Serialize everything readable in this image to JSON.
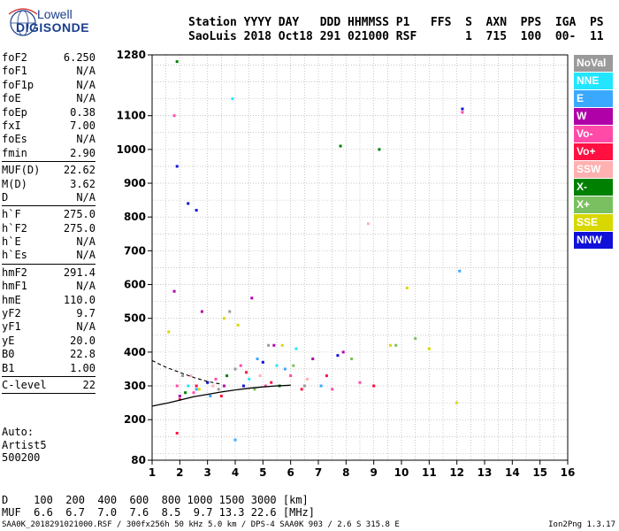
{
  "logo": {
    "line1": "Lowell",
    "line2": "DIGISONDE"
  },
  "header": {
    "line1": "Station YYYY DAY   DDD HHMMSS P1   FFS  S  AXN  PPS  IGA  PS",
    "line2": "SaoLuis 2018 Oct18 291 021000 RSF       1  715  100  00-  11"
  },
  "params": [
    {
      "k": "foF2",
      "v": "6.250"
    },
    {
      "k": "foF1",
      "v": "N/A"
    },
    {
      "k": "foF1p",
      "v": "N/A"
    },
    {
      "k": "foE",
      "v": "N/A"
    },
    {
      "k": "foEp",
      "v": "0.38"
    },
    {
      "k": "fxI",
      "v": "7.00"
    },
    {
      "k": "foEs",
      "v": "N/A"
    },
    {
      "k": "fmin",
      "v": "2.90"
    },
    {
      "sep": true
    },
    {
      "k": "MUF(D)",
      "v": "22.62"
    },
    {
      "k": "M(D)",
      "v": "3.62"
    },
    {
      "k": "D",
      "v": "N/A"
    },
    {
      "sep": true
    },
    {
      "k": "h`F",
      "v": "275.0"
    },
    {
      "k": "h`F2",
      "v": "275.0"
    },
    {
      "k": "h`E",
      "v": "N/A"
    },
    {
      "k": "h`Es",
      "v": "N/A"
    },
    {
      "sep": true
    },
    {
      "k": "hmF2",
      "v": "291.4"
    },
    {
      "k": "hmF1",
      "v": "N/A"
    },
    {
      "k": "hmE",
      "v": "110.0"
    },
    {
      "k": "yF2",
      "v": "9.7"
    },
    {
      "k": "yF1",
      "v": "N/A"
    },
    {
      "k": "yE",
      "v": "20.0"
    },
    {
      "k": "B0",
      "v": "22.8"
    },
    {
      "k": "B1",
      "v": "1.00"
    },
    {
      "sep": true
    },
    {
      "k": "C-level",
      "v": "22"
    },
    {
      "sep": true
    }
  ],
  "auto": {
    "l1": "Auto:",
    "l2": "Artist5",
    "l3": "500200"
  },
  "legend": [
    {
      "label": "NoVal",
      "color": "#9a9a9a"
    },
    {
      "label": "NNE",
      "color": "#22e6ff"
    },
    {
      "label": "E",
      "color": "#3aa8ff"
    },
    {
      "label": "W",
      "color": "#b000a8"
    },
    {
      "label": "Vo-",
      "color": "#ff4aa8"
    },
    {
      "label": "Vo+",
      "color": "#ff1040"
    },
    {
      "label": "SSW",
      "color": "#ffb0b0"
    },
    {
      "label": "X-",
      "color": "#008000"
    },
    {
      "label": "X+",
      "color": "#7ac060"
    },
    {
      "label": "SSE",
      "color": "#d8d800"
    },
    {
      "label": "NNW",
      "color": "#1010d8"
    }
  ],
  "footer": {
    "line1": "D    100  200  400  600  800 1000 1500 3000 [km]",
    "line2": "MUF  6.6  6.7  7.0  7.6  8.5  9.7 13.3 22.6 [MHz]",
    "line3": "SAA0K_2018291021000.RSF / 300fx256h 50 kHz 5.0 km / DPS-4 SAA0K 903 / 2.6 S 315.8 E",
    "version": "Ion2Png 1.3.17"
  },
  "chart_data": {
    "type": "scatter",
    "title": "",
    "xlabel": "",
    "ylabel": "",
    "xlim": [
      1,
      16
    ],
    "ylim": [
      80,
      1280
    ],
    "x_ticks": [
      1,
      2,
      3,
      4,
      5,
      6,
      7,
      8,
      9,
      10,
      11,
      12,
      13,
      14,
      15,
      16
    ],
    "y_ticks": [
      80,
      200,
      300,
      400,
      500,
      600,
      700,
      800,
      900,
      1000,
      1100,
      1280
    ],
    "grid": true,
    "series": [
      {
        "name": "NoVal",
        "color": "#9a9a9a",
        "points": [
          [
            2.1,
            330
          ],
          [
            3.4,
            290
          ],
          [
            4.0,
            350
          ],
          [
            5.2,
            420
          ],
          [
            6.5,
            300
          ],
          [
            3.8,
            520
          ]
        ]
      },
      {
        "name": "NNE",
        "color": "#22e6ff",
        "points": [
          [
            2.3,
            300
          ],
          [
            3.9,
            1150
          ],
          [
            4.5,
            320
          ],
          [
            5.5,
            360
          ],
          [
            6.2,
            410
          ]
        ]
      },
      {
        "name": "E",
        "color": "#3aa8ff",
        "points": [
          [
            2.6,
            290
          ],
          [
            3.1,
            270
          ],
          [
            4.0,
            140
          ],
          [
            4.8,
            380
          ],
          [
            5.8,
            350
          ],
          [
            7.1,
            300
          ],
          [
            12.1,
            640
          ]
        ]
      },
      {
        "name": "W",
        "color": "#b000a8",
        "points": [
          [
            2.0,
            270
          ],
          [
            2.8,
            520
          ],
          [
            3.6,
            300
          ],
          [
            4.6,
            560
          ],
          [
            5.4,
            420
          ],
          [
            6.8,
            380
          ],
          [
            7.9,
            400
          ],
          [
            1.8,
            580
          ]
        ]
      },
      {
        "name": "Vo-",
        "color": "#ff4aa8",
        "points": [
          [
            1.9,
            300
          ],
          [
            2.5,
            280
          ],
          [
            3.3,
            320
          ],
          [
            4.2,
            360
          ],
          [
            5.1,
            300
          ],
          [
            6.0,
            330
          ],
          [
            7.5,
            290
          ],
          [
            8.5,
            310
          ],
          [
            1.8,
            1100
          ],
          [
            12.2,
            1110
          ]
        ]
      },
      {
        "name": "Vo+",
        "color": "#ff1040",
        "points": [
          [
            2.0,
            260
          ],
          [
            2.6,
            300
          ],
          [
            3.5,
            270
          ],
          [
            4.4,
            340
          ],
          [
            5.3,
            310
          ],
          [
            6.4,
            290
          ],
          [
            7.3,
            330
          ],
          [
            9.0,
            300
          ],
          [
            1.9,
            160
          ]
        ]
      },
      {
        "name": "SSW",
        "color": "#ffb0b0",
        "points": [
          [
            2.4,
            330
          ],
          [
            3.2,
            300
          ],
          [
            4.9,
            330
          ],
          [
            6.6,
            320
          ],
          [
            8.8,
            780
          ]
        ]
      },
      {
        "name": "X-",
        "color": "#008000",
        "points": [
          [
            2.2,
            280
          ],
          [
            3.7,
            330
          ],
          [
            5.6,
            300
          ],
          [
            7.8,
            1010
          ],
          [
            9.2,
            1000
          ],
          [
            1.9,
            1260
          ]
        ]
      },
      {
        "name": "X+",
        "color": "#7ac060",
        "points": [
          [
            3.0,
            310
          ],
          [
            4.7,
            290
          ],
          [
            6.1,
            360
          ],
          [
            9.8,
            420
          ],
          [
            10.5,
            440
          ],
          [
            8.2,
            380
          ]
        ]
      },
      {
        "name": "SSE",
        "color": "#d8d800",
        "points": [
          [
            2.7,
            290
          ],
          [
            3.6,
            500
          ],
          [
            4.1,
            480
          ],
          [
            5.7,
            420
          ],
          [
            9.6,
            420
          ],
          [
            10.2,
            590
          ],
          [
            11.0,
            410
          ],
          [
            12.0,
            250
          ],
          [
            1.6,
            460
          ]
        ]
      },
      {
        "name": "NNW",
        "color": "#1010d8",
        "points": [
          [
            2.3,
            840
          ],
          [
            2.6,
            820
          ],
          [
            3.0,
            310
          ],
          [
            4.3,
            300
          ],
          [
            5.0,
            370
          ],
          [
            7.7,
            390
          ],
          [
            1.9,
            950
          ],
          [
            12.2,
            1120
          ]
        ]
      }
    ],
    "trace_solid": [
      [
        1.0,
        240
      ],
      [
        1.6,
        250
      ],
      [
        2.0,
        258
      ],
      [
        2.5,
        268
      ],
      [
        3.0,
        275
      ],
      [
        3.5,
        282
      ],
      [
        4.0,
        288
      ],
      [
        4.5,
        293
      ],
      [
        5.0,
        297
      ],
      [
        5.5,
        300
      ],
      [
        6.0,
        302
      ]
    ],
    "trace_dashed": [
      [
        1.0,
        375
      ],
      [
        1.5,
        355
      ],
      [
        2.0,
        340
      ],
      [
        2.5,
        325
      ],
      [
        3.0,
        313
      ],
      [
        3.5,
        305
      ]
    ]
  }
}
